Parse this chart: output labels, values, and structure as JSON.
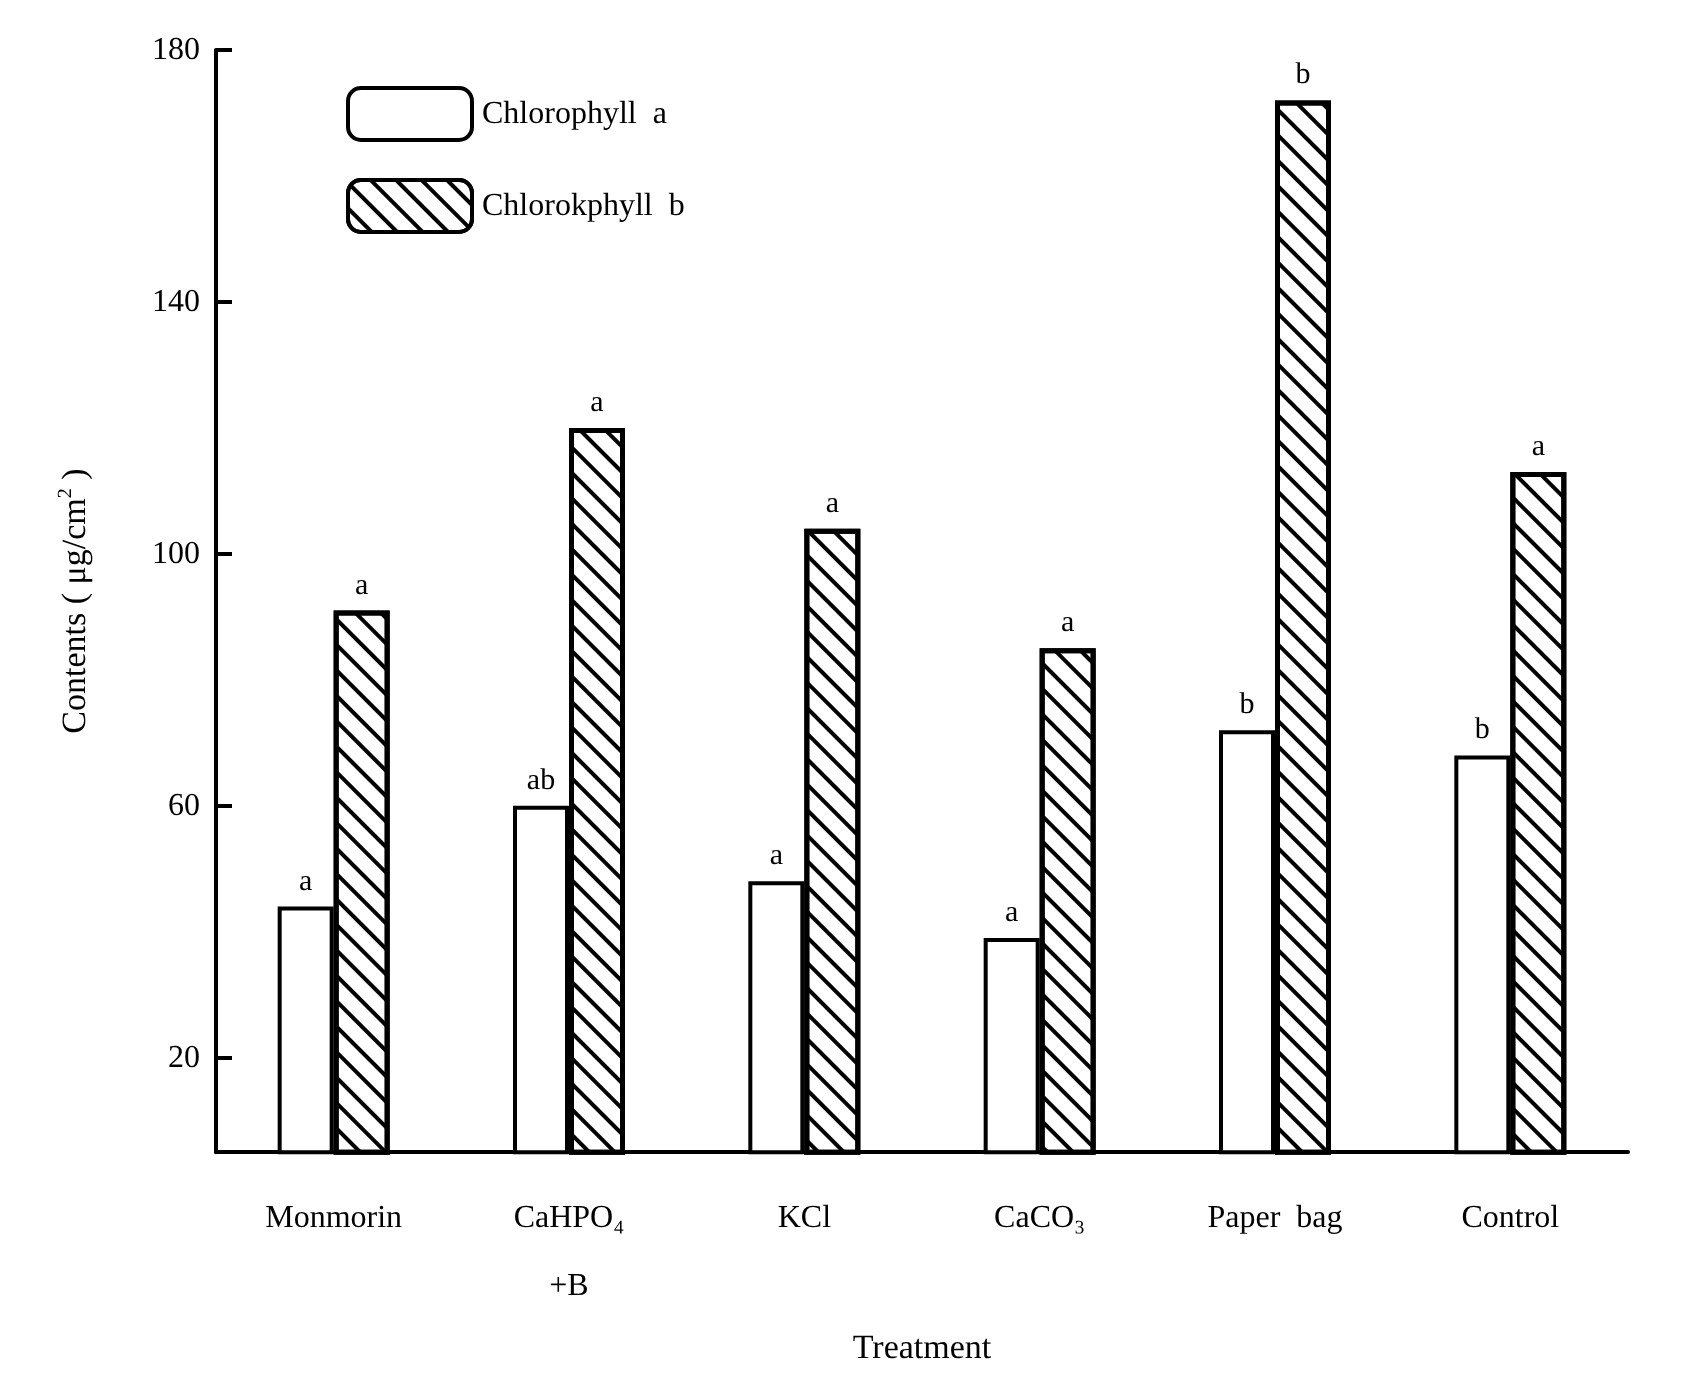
{
  "chart_data": {
    "type": "bar",
    "xlabel": "Treatment",
    "ylabel": "Contents ( μg/cm$^{2}$ )",
    "categories": [
      "Monmorin",
      "CaHPO₄\n+B",
      "KCl",
      "CaCO₃",
      "Paper  bag",
      "Control"
    ],
    "series": [
      {
        "name": "Chlorophyll  a",
        "color": "#ffffff",
        "values": [
          44,
          60,
          48,
          39,
          72,
          68
        ],
        "value_labels": [
          "a",
          "ab",
          "a",
          "a",
          "b",
          "b"
        ]
      },
      {
        "name": "Chlorokphyll  b",
        "color": "#000000",
        "values": [
          91,
          120,
          104,
          85,
          172,
          113
        ],
        "value_labels": [
          "a",
          "a",
          "a",
          "a",
          "b",
          "a"
        ]
      }
    ],
    "ylim": [
      5,
      180
    ],
    "yticks": [
      20,
      60,
      100,
      140,
      180
    ],
    "grid": false,
    "legend": "top left"
  }
}
